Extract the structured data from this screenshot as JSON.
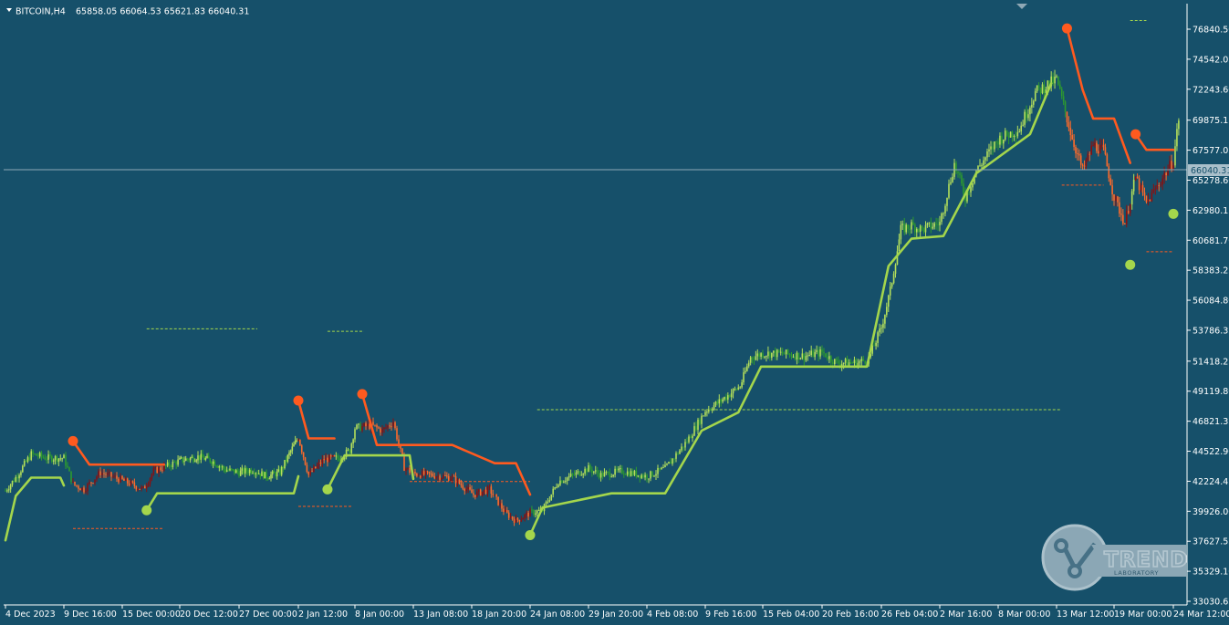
{
  "header": {
    "symbol_timeframe": "BITCOIN,H4",
    "ohlc": "65858.05 66064.53 65621.83 66040.31"
  },
  "price_axis": {
    "ticks": [
      "76840.50",
      "74542.05",
      "72243.60",
      "69875.15",
      "67577.05",
      "65278.60",
      "62980.15",
      "60681.70",
      "58383.25",
      "56084.80",
      "53786.35",
      "51418.25",
      "49119.80",
      "46821.35",
      "44522.90",
      "42224.45",
      "39926.00",
      "37627.55",
      "35329.10",
      "33030.65"
    ]
  },
  "current_price": "66040.31",
  "time_axis": {
    "ticks": [
      "4 Dec 2023",
      "9 Dec 16:00",
      "15 Dec 00:00",
      "20 Dec 12:00",
      "27 Dec 00:00",
      "2 Jan 12:00",
      "8 Jan 00:00",
      "13 Jan 08:00",
      "18 Jan 20:00",
      "24 Jan 08:00",
      "29 Jan 20:00",
      "4 Feb 08:00",
      "9 Feb 16:00",
      "15 Feb 04:00",
      "20 Feb 16:00",
      "26 Feb 04:00",
      "2 Mar 16:00",
      "8 Mar 00:00",
      "13 Mar 12:00",
      "19 Mar 00:00",
      "24 Mar 12:00"
    ]
  },
  "logo": {
    "line1": "TREND",
    "line2": "LABORATORY"
  },
  "colors": {
    "background": "#16506a",
    "bull_line": "#a4d64c",
    "bear_line": "#ff5a1f",
    "candle_bull_light": "#b5e05a",
    "candle_bull_dark": "#2e9b2e",
    "candle_bear_light": "#ff6a2a",
    "candle_bear_dark": "#8a1010",
    "axis_text": "#ffffff",
    "grid_line": "#8fa8b5"
  },
  "chart_data": {
    "type": "line",
    "y_unit": "price",
    "ylim": [
      33030.65,
      77600
    ],
    "x_range": [
      "4 Dec 2023",
      "24 Mar 12:00"
    ],
    "series": [
      {
        "kind": "trailing-stop-up",
        "segments": [
          [
            [
              "4 Dec 2023",
              37700
            ],
            [
              "5 Dec 2023",
              41100
            ],
            [
              "6 Dec 12:00",
              42500
            ],
            [
              "9 Dec 08:00",
              42500
            ],
            [
              "9 Dec 16:00",
              41900
            ]
          ],
          [
            [
              "17 Dec 08:00",
              40000
            ],
            [
              "18 Dec 08:00",
              41300
            ],
            [
              "26 Dec 00:00",
              41300
            ],
            [
              "2 Jan 00:00",
              41300
            ],
            [
              "2 Jan 12:00",
              42600
            ]
          ],
          [
            [
              "5 Jan 08:00",
              41600
            ],
            [
              "7 Jan 00:00",
              44200
            ],
            [
              "13 Jan 00:00",
              44200
            ],
            [
              "13 Jan 08:00",
              42400
            ]
          ],
          [
            [
              "24 Jan 08:00",
              38100
            ],
            [
              "25 Jan 12:00",
              40200
            ],
            [
              "1 Feb 00:00",
              41300
            ],
            [
              "6 Feb 00:00",
              41300
            ],
            [
              "9 Feb 08:00",
              46100
            ],
            [
              "12 Feb 20:00",
              47500
            ],
            [
              "15 Feb 00:00",
              51000
            ],
            [
              "24 Feb 20:00",
              51000
            ],
            [
              "26 Feb 20:00",
              58700
            ],
            [
              "29 Feb 00:00",
              60800
            ],
            [
              "3 Mar 00:00",
              61000
            ],
            [
              "6 Mar 00:00",
              65800
            ],
            [
              "11 Mar 00:00",
              68800
            ],
            [
              "13 Mar 00:00",
              72700
            ]
          ]
        ]
      },
      {
        "kind": "trailing-stop-down",
        "segments": [
          [
            [
              "10 Dec 12:00",
              45300
            ],
            [
              "12 Dec 00:00",
              43500
            ],
            [
              "19 Dec 00:00",
              43500
            ]
          ],
          [
            [
              "2 Jan 12:00",
              48400
            ],
            [
              "3 Jan 12:00",
              45500
            ],
            [
              "6 Jan 00:00",
              45500
            ]
          ],
          [
            [
              "8 Jan 16:00",
              48900
            ],
            [
              "10 Jan 00:00",
              45000
            ],
            [
              "17 Jan 00:00",
              45000
            ],
            [
              "21 Jan 00:00",
              43600
            ],
            [
              "23 Jan 00:00",
              43600
            ],
            [
              "24 Jan 08:00",
              41200
            ]
          ],
          [
            [
              "14 Mar 12:00",
              76900
            ],
            [
              "16 Mar 00:00",
              72200
            ],
            [
              "17 Mar 00:00",
              70000
            ],
            [
              "19 Mar 00:00",
              70000
            ],
            [
              "20 Mar 12:00",
              66600
            ]
          ],
          [
            [
              "21 Mar 00:00",
              68800
            ],
            [
              "22 Mar 00:00",
              67600
            ],
            [
              "24 Mar 12:00",
              67600
            ]
          ]
        ]
      }
    ],
    "signals": [
      {
        "type": "sell",
        "time": "10 Dec 12:00",
        "price": 45300
      },
      {
        "type": "buy",
        "time": "17 Dec 08:00",
        "price": 40000
      },
      {
        "type": "sell",
        "time": "2 Jan 12:00",
        "price": 48400
      },
      {
        "type": "buy",
        "time": "5 Jan 08:00",
        "price": 41600
      },
      {
        "type": "sell",
        "time": "8 Jan 16:00",
        "price": 48900
      },
      {
        "type": "buy",
        "time": "24 Jan 08:00",
        "price": 38100
      },
      {
        "type": "sell",
        "time": "14 Mar 12:00",
        "price": 76900
      },
      {
        "type": "buy",
        "time": "20 Mar 12:00",
        "price": 58800
      },
      {
        "type": "sell",
        "time": "21 Mar 00:00",
        "price": 68800
      },
      {
        "type": "buy",
        "time": "24 Mar 12:00",
        "price": 62700
      }
    ],
    "dashed_levels": [
      {
        "color": "bull",
        "price": 53900,
        "from": "17 Dec 08:00",
        "to": "29 Dec 00:00"
      },
      {
        "color": "bull",
        "price": 53700,
        "from": "5 Jan 08:00",
        "to": "8 Jan 20:00"
      },
      {
        "color": "bull",
        "price": 47700,
        "from": "25 Jan 00:00",
        "to": "14 Mar 00:00"
      },
      {
        "color": "bull",
        "price": 77500,
        "from": "20 Mar 12:00",
        "to": "22 Mar 00:00"
      },
      {
        "color": "bear",
        "price": 38600,
        "from": "10 Dec 12:00",
        "to": "19 Dec 00:00"
      },
      {
        "color": "bear",
        "price": 40300,
        "from": "2 Jan 12:00",
        "to": "7 Jan 16:00"
      },
      {
        "color": "bear",
        "price": 42200,
        "from": "13 Jan 00:00",
        "to": "24 Jan 08:00"
      },
      {
        "color": "bear",
        "price": 64900,
        "from": "14 Mar 00:00",
        "to": "18 Mar 00:00"
      },
      {
        "color": "bear",
        "price": 59800,
        "from": "22 Mar 00:00",
        "to": "24 Mar 12:00"
      }
    ],
    "price_path": [
      [
        "4 Dec 2023",
        41500
      ],
      [
        "5 Dec 2023",
        42500
      ],
      [
        "6 Dec 12:00",
        44300
      ],
      [
        "8 Dec 00:00",
        44000
      ],
      [
        "9 Dec 16:00",
        44000
      ],
      [
        "10 Dec 12:00",
        42000
      ],
      [
        "11 Dec 12:00",
        41600
      ],
      [
        "13 Dec 00:00",
        42900
      ],
      [
        "15 Dec 00:00",
        42300
      ],
      [
        "17 Dec 00:00",
        41600
      ],
      [
        "18 Dec 00:00",
        43000
      ],
      [
        "19 Dec 00:00",
        43300
      ],
      [
        "20 Dec 12:00",
        43800
      ],
      [
        "22 Dec 12:00",
        44100
      ],
      [
        "24 Dec 00:00",
        43800
      ],
      [
        "25 Dec 12:00",
        43100
      ],
      [
        "27 Dec 00:00",
        42900
      ],
      [
        "28 Dec 12:00",
        43100
      ],
      [
        "30 Dec 00:00",
        42600
      ],
      [
        "31 Dec 12:00",
        42900
      ],
      [
        "1 Jan 12:00",
        44300
      ],
      [
        "2 Jan 12:00",
        45600
      ],
      [
        "3 Jan 12:00",
        42700
      ],
      [
        "5 Jan 00:00",
        43900
      ],
      [
        "6 Jan 12:00",
        44000
      ],
      [
        "7 Jan 12:00",
        44600
      ],
      [
        "8 Jan 00:00",
        46300
      ],
      [
        "9 Jan 12:00",
        46500
      ],
      [
        "10 Jan 12:00",
        46100
      ],
      [
        "11 Jan 12:00",
        46800
      ],
      [
        "12 Jan 12:00",
        43300
      ],
      [
        "13 Jan 08:00",
        42800
      ],
      [
        "15 Jan 00:00",
        42700
      ],
      [
        "17 Jan 00:00",
        42500
      ],
      [
        "19 Jan 00:00",
        41200
      ],
      [
        "20 Jan 12:00",
        41600
      ],
      [
        "22 Jan 00:00",
        39800
      ],
      [
        "23 Jan 00:00",
        39200
      ],
      [
        "24 Jan 08:00",
        39800
      ],
      [
        "25 Jan 12:00",
        40000
      ],
      [
        "27 Jan 00:00",
        42200
      ],
      [
        "29 Jan 20:00",
        43200
      ],
      [
        "31 Jan 00:00",
        42700
      ],
      [
        "2 Feb 00:00",
        43000
      ],
      [
        "4 Feb 08:00",
        42600
      ],
      [
        "6 Feb 00:00",
        43200
      ],
      [
        "8 Feb 00:00",
        45300
      ],
      [
        "9 Feb 16:00",
        47600
      ],
      [
        "11 Feb 00:00",
        48300
      ],
      [
        "13 Feb 00:00",
        49500
      ],
      [
        "14 Feb 00:00",
        51700
      ],
      [
        "15 Feb 04:00",
        52000
      ],
      [
        "17 Feb 00:00",
        52000
      ],
      [
        "19 Feb 00:00",
        51800
      ],
      [
        "20 Feb 16:00",
        52100
      ],
      [
        "22 Feb 00:00",
        51300
      ],
      [
        "24 Feb 00:00",
        51300
      ],
      [
        "25 Feb 00:00",
        51600
      ],
      [
        "26 Feb 04:00",
        54000
      ],
      [
        "27 Feb 00:00",
        56800
      ],
      [
        "28 Feb 00:00",
        61500
      ],
      [
        "29 Feb 00:00",
        61800
      ],
      [
        "1 Mar 00:00",
        61500
      ],
      [
        "2 Mar 16:00",
        62000
      ],
      [
        "4 Mar 00:00",
        66500
      ],
      [
        "5 Mar 00:00",
        64000
      ],
      [
        "6 Mar 00:00",
        66000
      ],
      [
        "8 Mar 00:00",
        68400
      ],
      [
        "10 Mar 00:00",
        69200
      ],
      [
        "11 Mar 12:00",
        72000
      ],
      [
        "13 Mar 12:00",
        73000
      ],
      [
        "14 Mar 00:00",
        71500
      ],
      [
        "15 Mar 00:00",
        68500
      ],
      [
        "16 Mar 00:00",
        66000
      ],
      [
        "17 Mar 00:00",
        68000
      ],
      [
        "18 Mar 00:00",
        67500
      ],
      [
        "19 Mar 00:00",
        64000
      ],
      [
        "20 Mar 00:00",
        62000
      ],
      [
        "21 Mar 00:00",
        65500
      ],
      [
        "22 Mar 00:00",
        63500
      ],
      [
        "23 Mar 00:00",
        64800
      ],
      [
        "24 Mar 12:00",
        66800
      ],
      [
        "25 Mar 00:00",
        70000
      ]
    ]
  }
}
